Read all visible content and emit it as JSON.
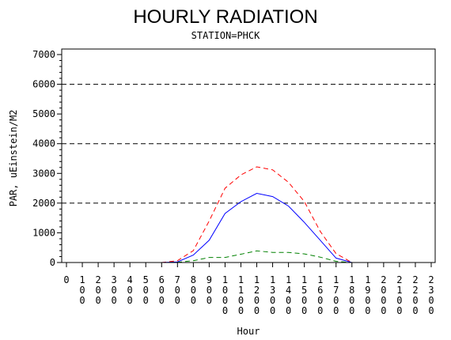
{
  "chart_data": {
    "type": "line",
    "title": "HOURLY RADIATION",
    "subtitle": "STATION=PHCK",
    "xlabel": "Hour",
    "ylabel": "PAR, uEinstein/M2",
    "xlim": [
      0,
      2300
    ],
    "ylim": [
      0,
      7000
    ],
    "y_ticks": [
      0,
      1000,
      2000,
      3000,
      4000,
      5000,
      6000,
      7000
    ],
    "y_tick_labels": [
      "0",
      "1000",
      "2000",
      "3000",
      "4000",
      "5000",
      "6000",
      "7000"
    ],
    "x_ticks": [
      0,
      100,
      200,
      300,
      400,
      500,
      600,
      700,
      800,
      900,
      1000,
      1100,
      1200,
      1300,
      1400,
      1500,
      1600,
      1700,
      1800,
      1900,
      2000,
      2100,
      2200,
      2300
    ],
    "x_tick_labels": [
      "0",
      "100",
      "200",
      "300",
      "400",
      "500",
      "600",
      "700",
      "800",
      "900",
      "1000",
      "1100",
      "1200",
      "1300",
      "1400",
      "1500",
      "1600",
      "1700",
      "1800",
      "1900",
      "2000",
      "2100",
      "2200",
      "2300"
    ],
    "reference_lines": [
      2000,
      4000,
      6000
    ],
    "grid": false,
    "legend": "none",
    "x": [
      0,
      100,
      200,
      300,
      400,
      500,
      600,
      700,
      800,
      900,
      1000,
      1100,
      1200,
      1300,
      1400,
      1500,
      1600,
      1700,
      1800,
      1900,
      2000,
      2100,
      2200,
      2300
    ],
    "series": [
      {
        "color": "#ff0000",
        "dash": "dashed",
        "values": [
          0,
          0,
          0,
          0,
          0,
          0,
          0,
          60,
          400,
          1400,
          2500,
          2950,
          3220,
          3120,
          2700,
          2050,
          1050,
          300,
          0,
          0,
          0,
          0,
          0,
          0
        ]
      },
      {
        "color": "#0000ff",
        "dash": "solid",
        "values": [
          0,
          0,
          0,
          0,
          0,
          0,
          0,
          20,
          250,
          750,
          1650,
          2050,
          2330,
          2220,
          1900,
          1350,
          750,
          150,
          0,
          0,
          0,
          0,
          0,
          0
        ]
      },
      {
        "color": "#008000",
        "dash": "dashed",
        "values": [
          0,
          0,
          0,
          0,
          0,
          0,
          0,
          5,
          60,
          170,
          170,
          280,
          390,
          340,
          340,
          290,
          180,
          40,
          0,
          0,
          0,
          0,
          0,
          0
        ]
      }
    ]
  }
}
